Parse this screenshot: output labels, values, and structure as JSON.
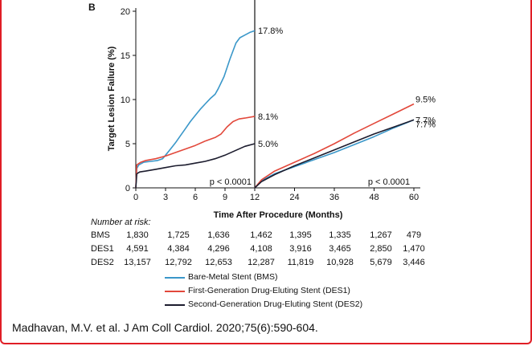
{
  "panel_label": "B",
  "chart_data": {
    "type": "line",
    "xlabel": "Time After Procedure (Months)",
    "ylabel": "Target Lesion Failure (%)",
    "ylim": [
      0,
      20
    ],
    "yticks": [
      0,
      5,
      10,
      15,
      20
    ],
    "xticks_left": [
      0,
      3,
      6,
      9,
      12
    ],
    "xticks_right": [
      12,
      24,
      36,
      48,
      60
    ],
    "landmark_split_month": 12,
    "p_values": [
      "p < 0.0001",
      "p < 0.0001"
    ],
    "series": [
      {
        "name": "Bare-Metal Stent (BMS)",
        "color": "#3a97c9",
        "end_label_left": "17.8%",
        "end_label_right": "7.7%",
        "segment_0_12": [
          [
            0,
            0
          ],
          [
            0.1,
            2.2
          ],
          [
            0.3,
            2.6
          ],
          [
            0.8,
            2.9
          ],
          [
            1.5,
            3.0
          ],
          [
            2.2,
            3.1
          ],
          [
            2.7,
            3.3
          ],
          [
            3,
            3.7
          ],
          [
            3.5,
            4.4
          ],
          [
            4,
            5.1
          ],
          [
            4.5,
            5.9
          ],
          [
            5,
            6.7
          ],
          [
            5.5,
            7.5
          ],
          [
            6,
            8.2
          ],
          [
            6.5,
            8.9
          ],
          [
            7,
            9.5
          ],
          [
            7.5,
            10.1
          ],
          [
            8,
            10.6
          ],
          [
            8.3,
            11.2
          ],
          [
            8.6,
            11.9
          ],
          [
            8.9,
            12.6
          ],
          [
            9.2,
            13.6
          ],
          [
            9.5,
            14.6
          ],
          [
            9.8,
            15.5
          ],
          [
            10.1,
            16.4
          ],
          [
            10.5,
            17.0
          ],
          [
            11,
            17.3
          ],
          [
            11.5,
            17.6
          ],
          [
            12,
            17.8
          ]
        ],
        "segment_12_60": [
          [
            12,
            0
          ],
          [
            14,
            0.8
          ],
          [
            18,
            1.6
          ],
          [
            24,
            2.4
          ],
          [
            30,
            3.2
          ],
          [
            36,
            4.0
          ],
          [
            42,
            4.9
          ],
          [
            48,
            5.8
          ],
          [
            54,
            6.8
          ],
          [
            60,
            7.7
          ]
        ]
      },
      {
        "name": "First-Generation Drug-Eluting Stent (DES1)",
        "color": "#e2483b",
        "end_label_left": "8.1%",
        "end_label_right": "9.5%",
        "segment_0_12": [
          [
            0,
            0
          ],
          [
            0.1,
            2.6
          ],
          [
            0.5,
            2.9
          ],
          [
            1,
            3.1
          ],
          [
            2,
            3.3
          ],
          [
            3,
            3.6
          ],
          [
            4,
            4.0
          ],
          [
            5,
            4.4
          ],
          [
            6,
            4.8
          ],
          [
            7,
            5.3
          ],
          [
            8,
            5.7
          ],
          [
            8.6,
            6.1
          ],
          [
            9.2,
            6.9
          ],
          [
            9.8,
            7.5
          ],
          [
            10.4,
            7.8
          ],
          [
            11,
            7.9
          ],
          [
            12,
            8.1
          ]
        ],
        "segment_12_60": [
          [
            12,
            0
          ],
          [
            14,
            0.9
          ],
          [
            18,
            1.9
          ],
          [
            24,
            2.9
          ],
          [
            30,
            3.9
          ],
          [
            36,
            5.0
          ],
          [
            42,
            6.2
          ],
          [
            48,
            7.3
          ],
          [
            54,
            8.4
          ],
          [
            60,
            9.5
          ]
        ]
      },
      {
        "name": "Second-Generation Drug-Eluting Stent (DES2)",
        "color": "#1c1c2e",
        "end_label_left": "5.0%",
        "end_label_right": "7.7%",
        "segment_0_12": [
          [
            0,
            0
          ],
          [
            0.1,
            1.6
          ],
          [
            0.4,
            1.8
          ],
          [
            1,
            1.9
          ],
          [
            2,
            2.1
          ],
          [
            3,
            2.3
          ],
          [
            4,
            2.5
          ],
          [
            5,
            2.6
          ],
          [
            6,
            2.8
          ],
          [
            7,
            3.0
          ],
          [
            8,
            3.3
          ],
          [
            9,
            3.7
          ],
          [
            10,
            4.2
          ],
          [
            11,
            4.7
          ],
          [
            12,
            5.0
          ]
        ],
        "segment_12_60": [
          [
            12,
            0
          ],
          [
            14,
            0.7
          ],
          [
            18,
            1.5
          ],
          [
            24,
            2.5
          ],
          [
            30,
            3.4
          ],
          [
            36,
            4.3
          ],
          [
            42,
            5.2
          ],
          [
            48,
            6.1
          ],
          [
            54,
            6.9
          ],
          [
            60,
            7.7
          ]
        ]
      }
    ]
  },
  "risk_table": {
    "title": "Number at risk:",
    "rows": [
      {
        "label": "BMS",
        "values": [
          "1,830",
          "1,725",
          "1,636",
          "1,462",
          "1,395",
          "1,335",
          "1,267",
          "479"
        ]
      },
      {
        "label": "DES1",
        "values": [
          "4,591",
          "4,384",
          "4,296",
          "4,108",
          "3,916",
          "3,465",
          "2,850",
          "1,470"
        ]
      },
      {
        "label": "DES2",
        "values": [
          "13,157",
          "12,792",
          "12,653",
          "12,287",
          "11,819",
          "10,928",
          "5,679",
          "3,446"
        ]
      }
    ]
  },
  "citation": "Madhavan, M.V. et al. J Am Coll Cardiol. 2020;75(6):590-604."
}
